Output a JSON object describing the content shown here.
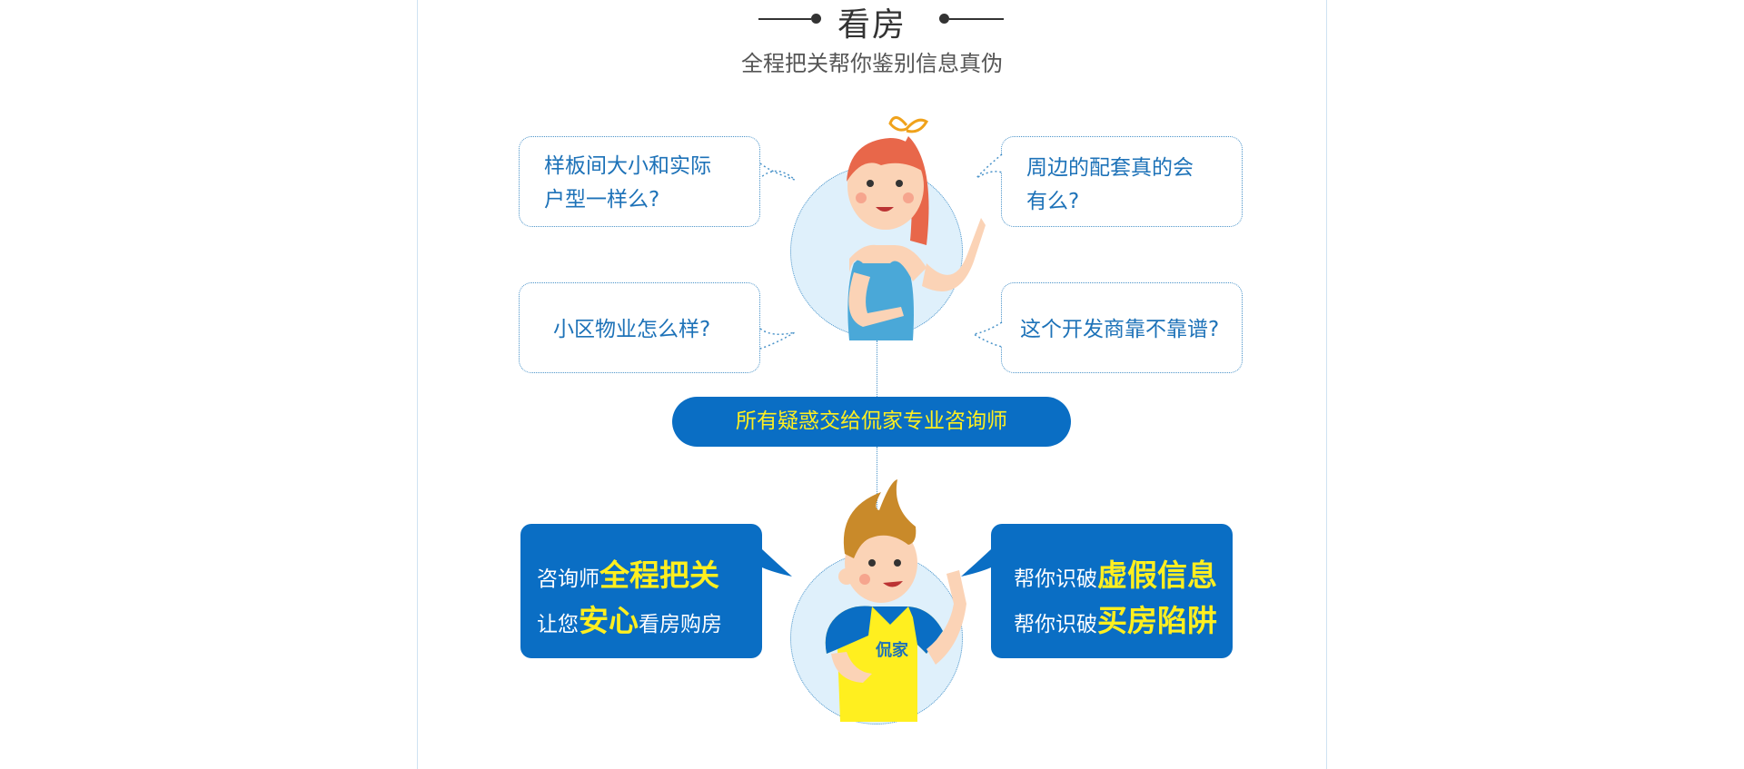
{
  "header": {
    "title": "看房",
    "subtitle": "全程把关帮你鉴别信息真伪"
  },
  "questions": [
    {
      "line1": "样板间大小和实际",
      "line2": "户型一样么?"
    },
    {
      "line1": "周边的配套真的会",
      "line2": "有么?"
    },
    {
      "line1": "小区物业怎么样?",
      "line2": ""
    },
    {
      "line1": "这个开发商靠不靠谱?",
      "line2": ""
    }
  ],
  "banner": {
    "label": "所有疑惑交给侃家专业咨询师"
  },
  "consultant_left": {
    "line1_prefix": "咨询师",
    "line1_highlight": "全程把关",
    "line2_prefix": "让您",
    "line2_highlight": "安心",
    "line2_suffix": "看房购房"
  },
  "consultant_right": {
    "line1_prefix": "帮你识破",
    "line1_highlight": "虚假信息",
    "line2_prefix": "帮你识破",
    "line2_highlight": "买房陷阱"
  },
  "shirt_logo": "侃家",
  "colors": {
    "brand_blue": "#0a6ec4",
    "highlight_yellow": "#ffef1f",
    "question_text": "#1d72b8",
    "bubble_border": "#4a93c9",
    "circle_fill": "#dff0fb"
  }
}
